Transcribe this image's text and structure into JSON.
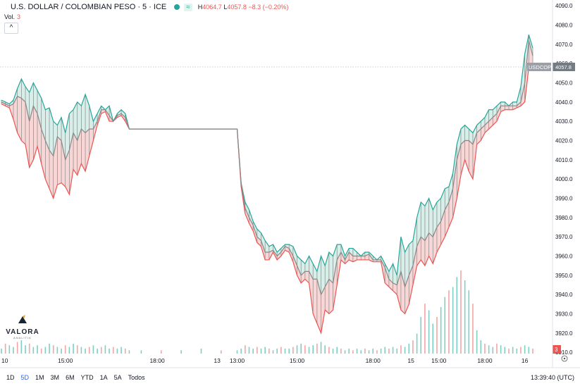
{
  "header": {
    "title": "U.S. DOLLAR / COLOMBIAN PESO · 5 · ICE",
    "badge": "≈",
    "high_label": "H",
    "high_value": "4064.7",
    "low_label": "L",
    "low_value": "4057.8",
    "change": "−8.3 (−0.20%)",
    "vol_label": "Vol.",
    "vol_value": "3",
    "collapse_icon": "^"
  },
  "price_label": {
    "symbol": "USDCOP",
    "value": "4057.8"
  },
  "volume_label": "3",
  "logo": {
    "brand": "VALORA",
    "sub": "ANALITIK"
  },
  "timeframes": [
    "1D",
    "5D",
    "1M",
    "3M",
    "6M",
    "YTD",
    "1A",
    "5A",
    "Todos"
  ],
  "active_timeframe": "5D",
  "clock": "13:39:40 (UTC)",
  "colors": {
    "up": "#26a69a",
    "down": "#ef5350",
    "close": "#888888",
    "up_fill": "#d7eee9",
    "down_fill": "#f9d6d6"
  },
  "chart_data": {
    "type": "area",
    "y_ticks": [
      3910,
      3920,
      3930,
      3940,
      3950,
      3960,
      3970,
      3980,
      3990,
      4000,
      4010,
      4020,
      4030,
      4040,
      4050,
      4060,
      4070,
      4080,
      4090
    ],
    "x_tick_labels": [
      "10",
      "15:00",
      "18:00",
      "13",
      "13:00",
      "15:00",
      "18:00",
      "15",
      "15:00",
      "18:00",
      "16"
    ],
    "ylim": [
      3902,
      4093
    ],
    "last_price": 4057.8,
    "points": [
      [
        0,
        4041,
        4040,
        4039
      ],
      [
        2,
        4040,
        4039,
        4038
      ],
      [
        4,
        4039,
        4038,
        4037
      ],
      [
        6,
        4041,
        4039,
        4031
      ],
      [
        8,
        4047,
        4043,
        4024
      ],
      [
        10,
        4052,
        4042,
        4020
      ],
      [
        12,
        4048,
        4040,
        4018
      ],
      [
        14,
        4045,
        4030,
        4006
      ],
      [
        16,
        4050,
        4038,
        4010
      ],
      [
        18,
        4046,
        4034,
        4017
      ],
      [
        20,
        4042,
        4026,
        4008
      ],
      [
        22,
        4036,
        4020,
        4000
      ],
      [
        24,
        4037,
        4015,
        3995
      ],
      [
        26,
        4030,
        4012,
        3990
      ],
      [
        28,
        4028,
        4022,
        3997
      ],
      [
        30,
        4032,
        4020,
        3998
      ],
      [
        32,
        4024,
        4010,
        3996
      ],
      [
        34,
        4034,
        4015,
        3992
      ],
      [
        36,
        4036,
        4024,
        4005
      ],
      [
        38,
        4040,
        4020,
        4002
      ],
      [
        40,
        4038,
        4026,
        4008
      ],
      [
        42,
        4044,
        4024,
        4004
      ],
      [
        44,
        4038,
        4026,
        4012
      ],
      [
        46,
        4030,
        4026,
        4020
      ],
      [
        48,
        4034,
        4030,
        4028
      ],
      [
        50,
        4038,
        4036,
        4034
      ],
      [
        52,
        4036,
        4036,
        4035
      ],
      [
        54,
        4038,
        4033,
        4030
      ],
      [
        56,
        4030,
        4030,
        4030
      ],
      [
        58,
        4034,
        4033,
        4032
      ],
      [
        60,
        4036,
        4034,
        4033
      ],
      [
        62,
        4034,
        4032,
        4030
      ],
      [
        64,
        4026,
        4026,
        4026
      ],
      [
        70,
        4026,
        4026,
        4026
      ],
      [
        80,
        4026,
        4026,
        4026
      ],
      [
        90,
        4026,
        4026,
        4026
      ],
      [
        100,
        4026,
        4026,
        4026
      ],
      [
        110,
        4026,
        4026,
        4026
      ],
      [
        118,
        4026,
        4026,
        4026
      ],
      [
        120,
        3998,
        3998,
        3996
      ],
      [
        122,
        3988,
        3985,
        3982
      ],
      [
        124,
        3984,
        3980,
        3977
      ],
      [
        126,
        3978,
        3976,
        3973
      ],
      [
        128,
        3974,
        3970,
        3967
      ],
      [
        130,
        3972,
        3968,
        3965
      ],
      [
        132,
        3968,
        3962,
        3958
      ],
      [
        134,
        3965,
        3962,
        3958
      ],
      [
        136,
        3966,
        3963,
        3962
      ],
      [
        138,
        3962,
        3960,
        3958
      ],
      [
        140,
        3964,
        3962,
        3960
      ],
      [
        142,
        3966,
        3965,
        3963
      ],
      [
        144,
        3966,
        3964,
        3962
      ],
      [
        146,
        3965,
        3960,
        3957
      ],
      [
        148,
        3960,
        3955,
        3950
      ],
      [
        150,
        3958,
        3950,
        3946
      ],
      [
        152,
        3956,
        3952,
        3948
      ],
      [
        154,
        3960,
        3952,
        3946
      ],
      [
        156,
        3956,
        3948,
        3930
      ],
      [
        158,
        3952,
        3948,
        3925
      ],
      [
        160,
        3960,
        3940,
        3920
      ],
      [
        162,
        3955,
        3944,
        3932
      ],
      [
        164,
        3962,
        3948,
        3930
      ],
      [
        166,
        3960,
        3946,
        3932
      ],
      [
        168,
        3966,
        3958,
        3945
      ],
      [
        170,
        3966,
        3962,
        3958
      ],
      [
        172,
        3960,
        3958,
        3956
      ],
      [
        174,
        3964,
        3962,
        3958
      ],
      [
        176,
        3964,
        3960,
        3957
      ],
      [
        178,
        3962,
        3960,
        3958
      ],
      [
        180,
        3960,
        3960,
        3958
      ],
      [
        182,
        3962,
        3960,
        3958
      ],
      [
        184,
        3962,
        3961,
        3958
      ],
      [
        186,
        3960,
        3958,
        3957
      ],
      [
        188,
        3958,
        3958,
        3957
      ],
      [
        190,
        3960,
        3958,
        3957
      ],
      [
        192,
        3956,
        3954,
        3946
      ],
      [
        194,
        3952,
        3948,
        3944
      ],
      [
        196,
        3956,
        3946,
        3942
      ],
      [
        198,
        3950,
        3945,
        3940
      ],
      [
        200,
        3970,
        3952,
        3932
      ],
      [
        202,
        3962,
        3944,
        3930
      ],
      [
        204,
        3966,
        3950,
        3935
      ],
      [
        206,
        3968,
        3955,
        3945
      ],
      [
        208,
        3980,
        3965,
        3955
      ],
      [
        210,
        3988,
        3970,
        3958
      ],
      [
        212,
        3986,
        3968,
        3955
      ],
      [
        214,
        3990,
        3972,
        3960
      ],
      [
        216,
        3984,
        3970,
        3956
      ],
      [
        218,
        3988,
        3975,
        3962
      ],
      [
        220,
        3990,
        3978,
        3966
      ],
      [
        222,
        3995,
        3984,
        3970
      ],
      [
        224,
        3996,
        3988,
        3975
      ],
      [
        226,
        4003,
        3995,
        3980
      ],
      [
        228,
        4018,
        4010,
        3990
      ],
      [
        230,
        4026,
        4018,
        4002
      ],
      [
        232,
        4028,
        4020,
        4010
      ],
      [
        234,
        4026,
        4020,
        4004
      ],
      [
        236,
        4024,
        4018,
        4000
      ],
      [
        238,
        4028,
        4024,
        4018
      ],
      [
        240,
        4030,
        4026,
        4020
      ],
      [
        242,
        4032,
        4028,
        4024
      ],
      [
        244,
        4036,
        4030,
        4026
      ],
      [
        246,
        4036,
        4032,
        4028
      ],
      [
        248,
        4038,
        4034,
        4030
      ],
      [
        250,
        4040,
        4038,
        4035
      ],
      [
        252,
        4040,
        4038,
        4036
      ],
      [
        254,
        4038,
        4038,
        4036
      ],
      [
        256,
        4040,
        4038,
        4036
      ],
      [
        258,
        4040,
        4038,
        4037
      ],
      [
        260,
        4048,
        4040,
        4038
      ],
      [
        262,
        4065,
        4050,
        4040
      ],
      [
        264,
        4075,
        4072,
        4058
      ],
      [
        266,
        4068,
        4064,
        4058
      ]
    ],
    "x_index_ticks": [
      0,
      32,
      78,
      108,
      118,
      148,
      186,
      205,
      219,
      242,
      262
    ],
    "volumes": [
      [
        0,
        3
      ],
      [
        2,
        6
      ],
      [
        4,
        5
      ],
      [
        6,
        4
      ],
      [
        8,
        7
      ],
      [
        10,
        8
      ],
      [
        12,
        5
      ],
      [
        14,
        6
      ],
      [
        16,
        4
      ],
      [
        18,
        5
      ],
      [
        20,
        3
      ],
      [
        22,
        4
      ],
      [
        24,
        6
      ],
      [
        26,
        5
      ],
      [
        28,
        4
      ],
      [
        30,
        3
      ],
      [
        32,
        5
      ],
      [
        34,
        4
      ],
      [
        36,
        6
      ],
      [
        38,
        5
      ],
      [
        40,
        4
      ],
      [
        42,
        3
      ],
      [
        44,
        4
      ],
      [
        46,
        5
      ],
      [
        48,
        3
      ],
      [
        50,
        4
      ],
      [
        52,
        5
      ],
      [
        54,
        3
      ],
      [
        56,
        4
      ],
      [
        58,
        3
      ],
      [
        60,
        4
      ],
      [
        62,
        3
      ],
      [
        64,
        2
      ],
      [
        70,
        2
      ],
      [
        80,
        2
      ],
      [
        90,
        2
      ],
      [
        100,
        3
      ],
      [
        110,
        2
      ],
      [
        118,
        2
      ],
      [
        120,
        3
      ],
      [
        122,
        5
      ],
      [
        124,
        4
      ],
      [
        126,
        3
      ],
      [
        128,
        4
      ],
      [
        130,
        3
      ],
      [
        132,
        4
      ],
      [
        134,
        3
      ],
      [
        136,
        2
      ],
      [
        138,
        3
      ],
      [
        140,
        4
      ],
      [
        142,
        3
      ],
      [
        144,
        3
      ],
      [
        146,
        4
      ],
      [
        148,
        5
      ],
      [
        150,
        6
      ],
      [
        152,
        5
      ],
      [
        154,
        4
      ],
      [
        156,
        5
      ],
      [
        158,
        6
      ],
      [
        160,
        7
      ],
      [
        162,
        5
      ],
      [
        164,
        4
      ],
      [
        166,
        3
      ],
      [
        168,
        4
      ],
      [
        170,
        3
      ],
      [
        172,
        2
      ],
      [
        174,
        3
      ],
      [
        176,
        2
      ],
      [
        178,
        3
      ],
      [
        180,
        2
      ],
      [
        182,
        3
      ],
      [
        184,
        2
      ],
      [
        186,
        3
      ],
      [
        188,
        2
      ],
      [
        190,
        3
      ],
      [
        192,
        4
      ],
      [
        194,
        3
      ],
      [
        196,
        4
      ],
      [
        198,
        3
      ],
      [
        200,
        5
      ],
      [
        202,
        4
      ],
      [
        204,
        6
      ],
      [
        206,
        8
      ],
      [
        208,
        12
      ],
      [
        210,
        22
      ],
      [
        212,
        30
      ],
      [
        214,
        26
      ],
      [
        216,
        18
      ],
      [
        218,
        22
      ],
      [
        220,
        28
      ],
      [
        222,
        34
      ],
      [
        224,
        38
      ],
      [
        226,
        40
      ],
      [
        228,
        46
      ],
      [
        230,
        50
      ],
      [
        232,
        44
      ],
      [
        234,
        38
      ],
      [
        236,
        30
      ],
      [
        238,
        14
      ],
      [
        240,
        8
      ],
      [
        242,
        6
      ],
      [
        244,
        5
      ],
      [
        246,
        4
      ],
      [
        248,
        6
      ],
      [
        250,
        5
      ],
      [
        252,
        4
      ],
      [
        254,
        3
      ],
      [
        256,
        4
      ],
      [
        258,
        3
      ],
      [
        260,
        4
      ],
      [
        262,
        5
      ],
      [
        264,
        4
      ],
      [
        266,
        3
      ]
    ]
  }
}
